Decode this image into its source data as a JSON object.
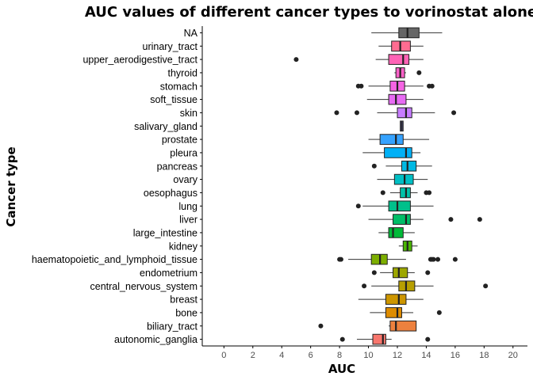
{
  "chart_data": {
    "type": "boxplot",
    "orientation": "horizontal",
    "title": "AUC values of different cancer types to vorinostat alone",
    "xlabel": "AUC",
    "ylabel": "Cancer type",
    "xlim": [
      -1.5,
      21
    ],
    "xticks": [
      0,
      2,
      4,
      6,
      8,
      10,
      12,
      14,
      16,
      18,
      20
    ],
    "grid": false,
    "legend": "none",
    "categories": [
      "autonomic_ganglia",
      "biliary_tract",
      "bone",
      "breast",
      "central_nervous_system",
      "endometrium",
      "haematopoietic_and_lymphoid_tissue",
      "kidney",
      "large_intestine",
      "liver",
      "lung",
      "oesophagus",
      "ovary",
      "pancreas",
      "pleura",
      "prostate",
      "salivary_gland",
      "skin",
      "soft_tissue",
      "stomach",
      "thyroid",
      "upper_aerodigestive_tract",
      "urinary_tract",
      "NA"
    ],
    "boxes": [
      {
        "category": "autonomic_ganglia",
        "color": "#F8766D",
        "whislo": 9.2,
        "q1": 10.3,
        "med": 11.0,
        "q3": 11.2,
        "whishi": 11.6,
        "outliers": [
          8.2,
          14.1
        ]
      },
      {
        "category": "biliary_tract",
        "color": "#ED813E",
        "whislo": 11.4,
        "q1": 11.5,
        "med": 11.9,
        "q3": 13.3,
        "whishi": 13.3,
        "outliers": [
          6.7
        ]
      },
      {
        "category": "bone",
        "color": "#DE8C00",
        "whislo": 10.1,
        "q1": 11.2,
        "med": 12.0,
        "q3": 12.3,
        "whishi": 13.1,
        "outliers": [
          14.9
        ]
      },
      {
        "category": "breast",
        "color": "#CD9600",
        "whislo": 9.3,
        "q1": 11.2,
        "med": 12.1,
        "q3": 12.6,
        "whishi": 13.8,
        "outliers": []
      },
      {
        "category": "central_nervous_system",
        "color": "#B79F00",
        "whislo": 10.2,
        "q1": 12.1,
        "med": 12.6,
        "q3": 13.2,
        "whishi": 14.5,
        "outliers": [
          9.7,
          18.1
        ]
      },
      {
        "category": "endometrium",
        "color": "#9DA700",
        "whislo": 10.8,
        "q1": 11.7,
        "med": 12.1,
        "q3": 12.7,
        "whishi": 13.2,
        "outliers": [
          10.4,
          14.1
        ]
      },
      {
        "category": "haematopoietic_and_lymphoid_tissue",
        "color": "#7CAE00",
        "whislo": 8.6,
        "q1": 10.2,
        "med": 10.8,
        "q3": 11.3,
        "whishi": 12.6,
        "outliers": [
          8.0,
          8.1,
          14.3,
          14.4,
          14.5,
          14.8,
          16.0
        ]
      },
      {
        "category": "kidney",
        "color": "#49B500",
        "whislo": 12.1,
        "q1": 12.4,
        "med": 12.7,
        "q3": 13.0,
        "whishi": 13.4,
        "outliers": []
      },
      {
        "category": "large_intestine",
        "color": "#00BA38",
        "whislo": 10.7,
        "q1": 11.4,
        "med": 11.7,
        "q3": 12.4,
        "whishi": 13.2,
        "outliers": []
      },
      {
        "category": "liver",
        "color": "#00BE67",
        "whislo": 10.0,
        "q1": 11.7,
        "med": 12.6,
        "q3": 12.9,
        "whishi": 13.8,
        "outliers": [
          15.7,
          17.7
        ]
      },
      {
        "category": "lung",
        "color": "#00C08B",
        "whislo": 9.6,
        "q1": 11.4,
        "med": 12.0,
        "q3": 12.9,
        "whishi": 14.5,
        "outliers": [
          9.3
        ]
      },
      {
        "category": "oesophagus",
        "color": "#00C1A9",
        "whislo": 11.5,
        "q1": 12.2,
        "med": 12.6,
        "q3": 12.9,
        "whishi": 13.4,
        "outliers": [
          11.0,
          14.0,
          14.2
        ]
      },
      {
        "category": "ovary",
        "color": "#00BFC4",
        "whislo": 10.6,
        "q1": 11.8,
        "med": 12.5,
        "q3": 13.1,
        "whishi": 14.1,
        "outliers": []
      },
      {
        "category": "pancreas",
        "color": "#00B9E3",
        "whislo": 11.2,
        "q1": 12.3,
        "med": 12.7,
        "q3": 13.3,
        "whishi": 14.4,
        "outliers": [
          10.4
        ]
      },
      {
        "category": "pleura",
        "color": "#00B0F6",
        "whislo": 9.6,
        "q1": 11.1,
        "med": 12.6,
        "q3": 13.0,
        "whishi": 13.6,
        "outliers": []
      },
      {
        "category": "prostate",
        "color": "#35A2FF",
        "whislo": 10.0,
        "q1": 10.8,
        "med": 11.9,
        "q3": 12.4,
        "whishi": 14.2,
        "outliers": []
      },
      {
        "category": "salivary_gland",
        "color": "#9590FF",
        "whislo": 12.2,
        "q1": 12.2,
        "med": 12.3,
        "q3": 12.4,
        "whishi": 12.4,
        "outliers": []
      },
      {
        "category": "skin",
        "color": "#C77CFF",
        "whislo": 10.6,
        "q1": 12.0,
        "med": 12.6,
        "q3": 13.0,
        "whishi": 14.6,
        "outliers": [
          7.8,
          9.2,
          15.9
        ]
      },
      {
        "category": "soft_tissue",
        "color": "#E76BF3",
        "whislo": 9.9,
        "q1": 11.4,
        "med": 11.9,
        "q3": 12.6,
        "whishi": 13.8,
        "outliers": []
      },
      {
        "category": "stomach",
        "color": "#F564E3",
        "whislo": 10.0,
        "q1": 11.5,
        "med": 12.0,
        "q3": 12.5,
        "whishi": 13.8,
        "outliers": [
          9.3,
          9.5,
          14.2,
          14.4
        ]
      },
      {
        "category": "thyroid",
        "color": "#FF61C9",
        "whislo": 11.8,
        "q1": 11.9,
        "med": 12.2,
        "q3": 12.5,
        "whishi": 12.6,
        "outliers": [
          13.5
        ]
      },
      {
        "category": "upper_aerodigestive_tract",
        "color": "#FF63B6",
        "whislo": 10.5,
        "q1": 11.4,
        "med": 12.4,
        "q3": 12.8,
        "whishi": 13.8,
        "outliers": [
          5.0
        ]
      },
      {
        "category": "urinary_tract",
        "color": "#FF6C91",
        "whislo": 10.7,
        "q1": 11.6,
        "med": 12.2,
        "q3": 12.9,
        "whishi": 13.8,
        "outliers": []
      },
      {
        "category": "NA",
        "color": "#666666",
        "whislo": 10.2,
        "q1": 12.1,
        "med": 12.7,
        "q3": 13.5,
        "whishi": 15.1,
        "outliers": []
      }
    ]
  }
}
